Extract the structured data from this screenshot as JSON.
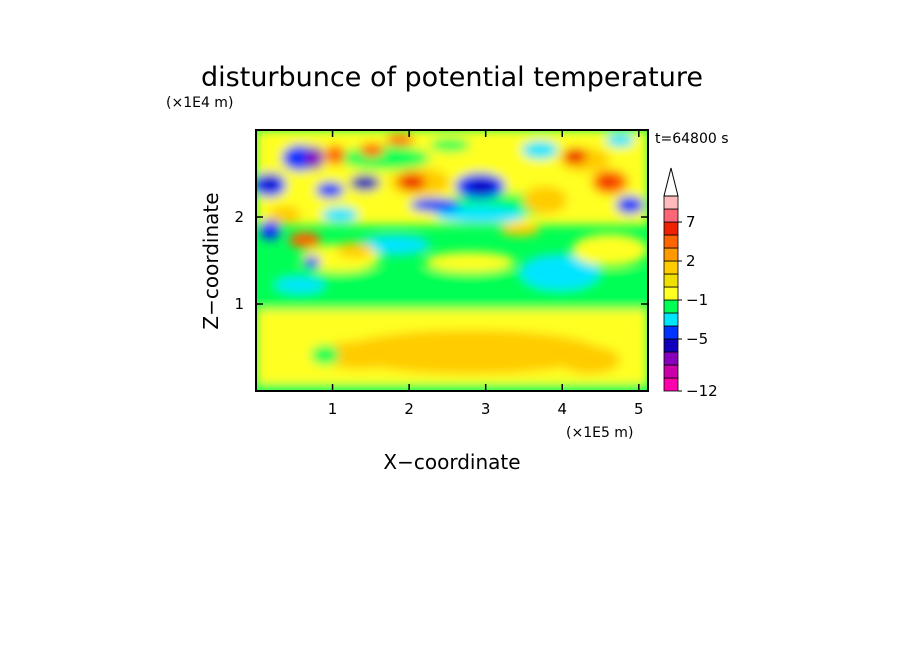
{
  "chart_data": {
    "type": "heatmap",
    "title": "disturbunce of potential temperature",
    "time_label": "t=64800 s",
    "xlabel": "X−coordinate",
    "ylabel": "Z−coordinate",
    "x_unit": "(×1E5 m)",
    "y_unit": "(×1E4 m)",
    "xlim": [
      0,
      5.12
    ],
    "ylim": [
      0,
      3.0
    ],
    "x_ticks": [
      {
        "value": 1,
        "label": "1"
      },
      {
        "value": 2,
        "label": "2"
      },
      {
        "value": 3,
        "label": "3"
      },
      {
        "value": 4,
        "label": "4"
      },
      {
        "value": 5,
        "label": "5"
      }
    ],
    "y_ticks": [
      {
        "value": 1,
        "label": "1"
      },
      {
        "value": 2,
        "label": "2"
      }
    ],
    "colorbar": {
      "levels": [
        -12,
        -11,
        -9,
        -7,
        -5,
        -3,
        -2,
        -1,
        0,
        1,
        2,
        3,
        5,
        7,
        9,
        11
      ],
      "colors": [
        "#ff00aa",
        "#cc00aa",
        "#8800bb",
        "#1100bb",
        "#0033ff",
        "#00e5ff",
        "#00ff55",
        "#ffff22",
        "#f0e000",
        "#ffcc00",
        "#ff9900",
        "#ff6600",
        "#ee2200",
        "#ff6677",
        "#ffbbbb"
      ],
      "tick_labels": [
        {
          "level": 7,
          "label": "7"
        },
        {
          "level": 2,
          "label": "2"
        },
        {
          "level": -1,
          "label": "−1"
        },
        {
          "level": -5,
          "label": "−5"
        },
        {
          "level": -12,
          "label": "−12"
        }
      ],
      "extend": "max"
    }
  }
}
